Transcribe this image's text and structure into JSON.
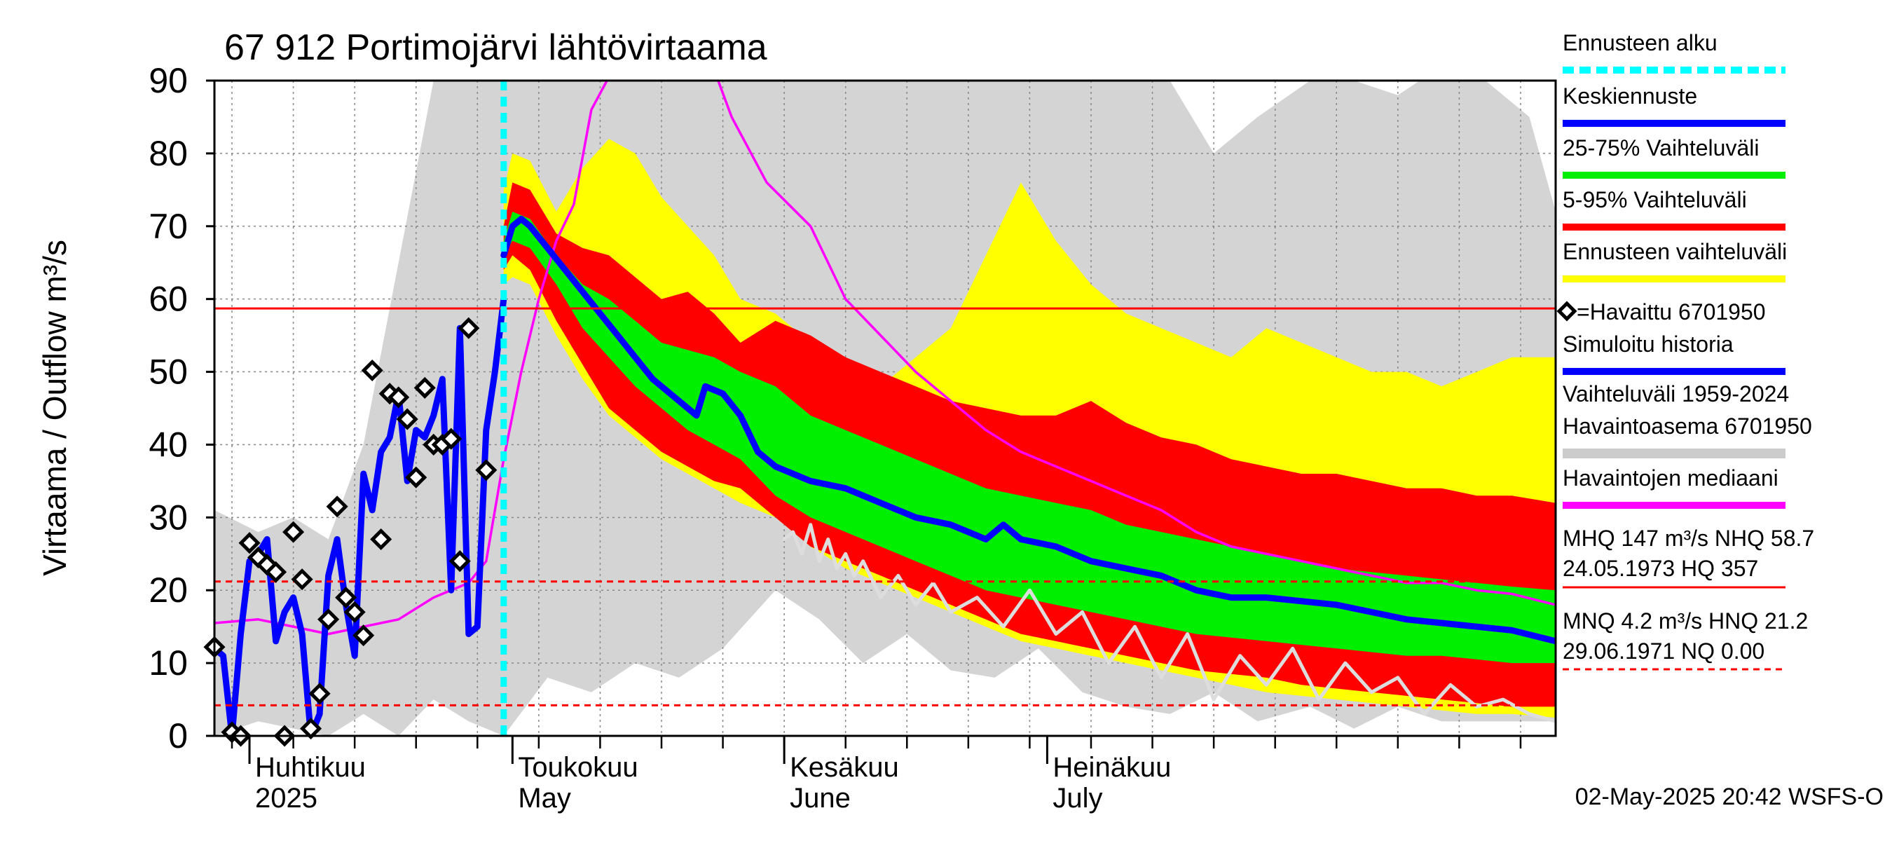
{
  "chart_data": {
    "type": "line",
    "title": "67 912 Portimojärvi lähtövirtaama",
    "ylabel": "Virtaama / Outflow    m³/s",
    "ylim": [
      0,
      90
    ],
    "yticks": [
      0,
      10,
      20,
      30,
      40,
      50,
      60,
      70,
      80,
      90
    ],
    "x_start": "2025-03-28",
    "x_end": "2025-08-28",
    "grid": true,
    "month_labels": [
      {
        "fi": "Huhtikuu",
        "en": "2025",
        "date": "2025-04-01"
      },
      {
        "fi": "Toukokuu",
        "en": "May",
        "date": "2025-05-01"
      },
      {
        "fi": "Kesäkuu",
        "en": "June",
        "date": "2025-06-01"
      },
      {
        "fi": "Heinäkuu",
        "en": "July",
        "date": "2025-07-01"
      }
    ],
    "forecast_start": "2025-04-30",
    "reference_lines": [
      {
        "value": 58.7,
        "style": "solid",
        "color": "#ff0000"
      },
      {
        "value": 21.2,
        "style": "dashed",
        "color": "#ff0000"
      },
      {
        "value": 4.2,
        "style": "dashed",
        "color": "#ff0000"
      },
      {
        "value": 0.0,
        "style": "dashed",
        "color": "#ff0000"
      }
    ],
    "historical_range": {
      "dates": [
        "2025-03-28",
        "2025-04-02",
        "2025-04-06",
        "2025-04-10",
        "2025-04-14",
        "2025-04-18",
        "2025-04-22",
        "2025-04-26",
        "2025-04-30",
        "2025-05-05",
        "2025-05-10",
        "2025-05-15",
        "2025-05-20",
        "2025-05-25",
        "2025-05-31",
        "2025-06-05",
        "2025-06-10",
        "2025-06-15",
        "2025-06-20",
        "2025-06-25",
        "2025-06-30",
        "2025-07-05",
        "2025-07-10",
        "2025-07-15",
        "2025-07-20",
        "2025-07-25",
        "2025-07-31",
        "2025-08-05",
        "2025-08-10",
        "2025-08-15",
        "2025-08-20",
        "2025-08-25",
        "2025-08-28"
      ],
      "low": [
        0,
        2,
        1,
        0,
        3,
        0,
        5,
        2,
        0,
        8,
        6,
        10,
        8,
        12,
        20,
        16,
        10,
        14,
        9,
        8,
        12,
        6,
        4,
        3,
        6,
        2,
        4,
        1,
        4,
        2,
        2,
        2,
        2
      ],
      "high": [
        31,
        28,
        30,
        27,
        40,
        65,
        90,
        90,
        90,
        90,
        90,
        90,
        90,
        90,
        90,
        90,
        90,
        90,
        90,
        90,
        90,
        90,
        90,
        90,
        80,
        85,
        90,
        90,
        88,
        92,
        90,
        85,
        72
      ]
    },
    "series": [
      {
        "name": "Ennusteen vaihteluväli",
        "type": "band",
        "color": "#ffff00",
        "dates": [
          "2025-04-30",
          "2025-05-01",
          "2025-05-03",
          "2025-05-06",
          "2025-05-09",
          "2025-05-12",
          "2025-05-15",
          "2025-05-18",
          "2025-05-21",
          "2025-05-24",
          "2025-05-27",
          "2025-05-31",
          "2025-06-04",
          "2025-06-08",
          "2025-06-12",
          "2025-06-16",
          "2025-06-20",
          "2025-06-24",
          "2025-06-28",
          "2025-07-02",
          "2025-07-06",
          "2025-07-10",
          "2025-07-14",
          "2025-07-18",
          "2025-07-22",
          "2025-07-26",
          "2025-07-30",
          "2025-08-03",
          "2025-08-07",
          "2025-08-11",
          "2025-08-15",
          "2025-08-19",
          "2025-08-23",
          "2025-08-28"
        ],
        "low": [
          62,
          63,
          62,
          55,
          49,
          44,
          41,
          38,
          36,
          34,
          32,
          30,
          26,
          23,
          21,
          19,
          17,
          15,
          13,
          12,
          11,
          10,
          9,
          8,
          7,
          6,
          5.5,
          5,
          4.5,
          4,
          3.5,
          3,
          3,
          2.5
        ],
        "high": [
          75,
          80,
          79,
          72,
          78,
          82,
          80,
          74,
          70,
          66,
          60,
          58,
          54,
          50,
          48,
          52,
          56,
          66,
          76,
          68,
          62,
          58,
          56,
          54,
          52,
          56,
          54,
          52,
          50,
          50,
          48,
          50,
          52,
          52
        ]
      },
      {
        "name": "5-95% Vaihteluväli",
        "type": "band",
        "color": "#ff0000",
        "dates": [
          "2025-04-30",
          "2025-05-01",
          "2025-05-03",
          "2025-05-06",
          "2025-05-09",
          "2025-05-12",
          "2025-05-15",
          "2025-05-18",
          "2025-05-21",
          "2025-05-24",
          "2025-05-27",
          "2025-05-31",
          "2025-06-04",
          "2025-06-08",
          "2025-06-12",
          "2025-06-16",
          "2025-06-20",
          "2025-06-24",
          "2025-06-28",
          "2025-07-02",
          "2025-07-06",
          "2025-07-10",
          "2025-07-14",
          "2025-07-18",
          "2025-07-22",
          "2025-07-26",
          "2025-07-30",
          "2025-08-03",
          "2025-08-07",
          "2025-08-11",
          "2025-08-15",
          "2025-08-19",
          "2025-08-23",
          "2025-08-28"
        ],
        "low": [
          64,
          66,
          64,
          57,
          51,
          45,
          42,
          39,
          37,
          35,
          34,
          30,
          26,
          24,
          22,
          20,
          18,
          16,
          14,
          13,
          12,
          11,
          10,
          9,
          8.5,
          8,
          7,
          6.5,
          6,
          5.5,
          5,
          4.5,
          4,
          4
        ],
        "high": [
          70,
          76,
          75,
          69,
          67,
          66,
          63,
          60,
          61,
          58,
          54,
          57,
          55,
          52,
          50,
          48,
          46,
          45,
          44,
          44,
          46,
          43,
          41,
          40,
          38,
          37,
          36,
          36,
          35,
          34,
          34,
          33,
          33,
          32
        ]
      },
      {
        "name": "25-75% Vaihteluväli",
        "type": "band",
        "color": "#00ee00",
        "dates": [
          "2025-04-30",
          "2025-05-01",
          "2025-05-03",
          "2025-05-06",
          "2025-05-09",
          "2025-05-12",
          "2025-05-15",
          "2025-05-18",
          "2025-05-21",
          "2025-05-24",
          "2025-05-27",
          "2025-05-31",
          "2025-06-04",
          "2025-06-08",
          "2025-06-12",
          "2025-06-16",
          "2025-06-20",
          "2025-06-24",
          "2025-06-28",
          "2025-07-02",
          "2025-07-06",
          "2025-07-10",
          "2025-07-14",
          "2025-07-18",
          "2025-07-22",
          "2025-07-26",
          "2025-07-30",
          "2025-08-03",
          "2025-08-07",
          "2025-08-11",
          "2025-08-15",
          "2025-08-19",
          "2025-08-23",
          "2025-08-28"
        ],
        "low": [
          66,
          68,
          67,
          62,
          56,
          52,
          48,
          45,
          42,
          40,
          38,
          33,
          30,
          28,
          26,
          24,
          22,
          20,
          19,
          18,
          17,
          16,
          15,
          14,
          13.5,
          13,
          12.5,
          12,
          11.5,
          11,
          11,
          10.5,
          10,
          10
        ],
        "high": [
          68,
          72,
          71,
          66,
          62,
          60,
          57,
          54,
          53,
          52,
          50,
          48,
          44,
          42,
          40,
          38,
          36,
          34,
          33,
          32,
          31,
          29,
          28,
          27,
          26,
          25,
          24,
          23,
          22.5,
          22,
          21.5,
          21,
          20.5,
          20
        ]
      },
      {
        "name": "Simuloitu historia",
        "type": "line",
        "color": "#0000ff",
        "dates": [
          "2025-03-28",
          "2025-03-29",
          "2025-03-30",
          "2025-03-31",
          "2025-04-01",
          "2025-04-02",
          "2025-04-03",
          "2025-04-04",
          "2025-04-05",
          "2025-04-06",
          "2025-04-07",
          "2025-04-08",
          "2025-04-09",
          "2025-04-10",
          "2025-04-11",
          "2025-04-12",
          "2025-04-13",
          "2025-04-14",
          "2025-04-15",
          "2025-04-16",
          "2025-04-17",
          "2025-04-18",
          "2025-04-19",
          "2025-04-20",
          "2025-04-21",
          "2025-04-22",
          "2025-04-23",
          "2025-04-24",
          "2025-04-25",
          "2025-04-26",
          "2025-04-27",
          "2025-04-28",
          "2025-04-29",
          "2025-04-30"
        ],
        "values": [
          12,
          11,
          0,
          14,
          24,
          25,
          27,
          13,
          17,
          19,
          14,
          0,
          3,
          22,
          27,
          18,
          11,
          36,
          31,
          39,
          41,
          47,
          35,
          42,
          41,
          44,
          49,
          20,
          56,
          14,
          15,
          42,
          50,
          60
        ]
      },
      {
        "name": "Keskiennuste",
        "type": "line",
        "color": "#0000ff",
        "dates": [
          "2025-04-30",
          "2025-05-01",
          "2025-05-02",
          "2025-05-03",
          "2025-05-05",
          "2025-05-07",
          "2025-05-09",
          "2025-05-11",
          "2025-05-13",
          "2025-05-15",
          "2025-05-17",
          "2025-05-19",
          "2025-05-21",
          "2025-05-22",
          "2025-05-23",
          "2025-05-25",
          "2025-05-27",
          "2025-05-29",
          "2025-05-31",
          "2025-06-04",
          "2025-06-08",
          "2025-06-12",
          "2025-06-16",
          "2025-06-20",
          "2025-06-24",
          "2025-06-26",
          "2025-06-28",
          "2025-07-02",
          "2025-07-06",
          "2025-07-10",
          "2025-07-14",
          "2025-07-18",
          "2025-07-22",
          "2025-07-26",
          "2025-07-30",
          "2025-08-03",
          "2025-08-07",
          "2025-08-11",
          "2025-08-15",
          "2025-08-19",
          "2025-08-23",
          "2025-08-28"
        ],
        "values": [
          66,
          70,
          71,
          70,
          67,
          64,
          61,
          58,
          55,
          52,
          49,
          47,
          45,
          44,
          48,
          47,
          44,
          39,
          37,
          35,
          34,
          32,
          30,
          29,
          27,
          29,
          27,
          26,
          24,
          23,
          22,
          20,
          19,
          19,
          18.5,
          18,
          17,
          16,
          15.5,
          15,
          14.5,
          13
        ]
      },
      {
        "name": "Havaintojen mediaani",
        "type": "line",
        "color": "#ff00ff",
        "dates": [
          "2025-03-28",
          "2025-04-02",
          "2025-04-06",
          "2025-04-10",
          "2025-04-14",
          "2025-04-18",
          "2025-04-22",
          "2025-04-26",
          "2025-04-28",
          "2025-04-30",
          "2025-05-02",
          "2025-05-04",
          "2025-05-06",
          "2025-05-08",
          "2025-05-10",
          "2025-05-14",
          "2025-05-18",
          "2025-05-22",
          "2025-05-26",
          "2025-05-30",
          "2025-06-04",
          "2025-06-08",
          "2025-06-12",
          "2025-06-16",
          "2025-06-20",
          "2025-06-24",
          "2025-06-28",
          "2025-07-02",
          "2025-07-06",
          "2025-07-10",
          "2025-07-14",
          "2025-07-18",
          "2025-07-22",
          "2025-07-26",
          "2025-07-30",
          "2025-08-03",
          "2025-08-07",
          "2025-08-11",
          "2025-08-15",
          "2025-08-19",
          "2025-08-23",
          "2025-08-28"
        ],
        "values": [
          15.5,
          16,
          15,
          14,
          15,
          16,
          19,
          21,
          24,
          38,
          50,
          60,
          68,
          73,
          86,
          95,
          105,
          98,
          85,
          76,
          70,
          60,
          55,
          50,
          46,
          42,
          39,
          37,
          35,
          33,
          31,
          28,
          26,
          25,
          24,
          23,
          22,
          21,
          21,
          20,
          19.5,
          18
        ]
      },
      {
        "name": "Havaittu 6701950",
        "type": "scatter",
        "marker": "diamond",
        "dates": [
          "2025-03-28",
          "2025-03-30",
          "2025-03-31",
          "2025-04-01",
          "2025-04-02",
          "2025-04-03",
          "2025-04-04",
          "2025-04-05",
          "2025-04-06",
          "2025-04-07",
          "2025-04-08",
          "2025-04-09",
          "2025-04-10",
          "2025-04-11",
          "2025-04-12",
          "2025-04-13",
          "2025-04-14",
          "2025-04-15",
          "2025-04-16",
          "2025-04-17",
          "2025-04-18",
          "2025-04-19",
          "2025-04-20",
          "2025-04-21",
          "2025-04-22",
          "2025-04-23",
          "2025-04-24",
          "2025-04-25",
          "2025-04-26",
          "2025-04-28"
        ],
        "values": [
          12.2,
          0.5,
          0,
          26.5,
          24.5,
          23.5,
          22.5,
          0,
          28,
          21.5,
          1,
          5.8,
          16,
          31.5,
          19,
          17,
          13.8,
          50.2,
          27,
          47,
          46.5,
          43.5,
          35.5,
          47.8,
          40,
          40,
          40.8,
          24,
          56,
          36.5
        ]
      },
      {
        "name": "observed-min-trace",
        "type": "line",
        "color": "#dddddd",
        "dates": [
          "2025-06-01",
          "2025-06-02",
          "2025-06-03",
          "2025-06-04",
          "2025-06-05",
          "2025-06-06",
          "2025-06-07",
          "2025-06-08",
          "2025-06-09",
          "2025-06-10",
          "2025-06-12",
          "2025-06-14",
          "2025-06-16",
          "2025-06-18",
          "2025-06-20",
          "2025-06-23",
          "2025-06-26",
          "2025-06-29",
          "2025-07-02",
          "2025-07-05",
          "2025-07-08",
          "2025-07-11",
          "2025-07-14",
          "2025-07-17",
          "2025-07-20",
          "2025-07-23",
          "2025-07-26",
          "2025-07-29",
          "2025-08-01",
          "2025-08-04",
          "2025-08-07",
          "2025-08-10",
          "2025-08-13",
          "2025-08-16",
          "2025-08-19",
          "2025-08-22",
          "2025-08-25",
          "2025-08-28"
        ],
        "values": [
          27,
          28,
          25,
          29,
          24,
          27,
          23,
          25,
          22,
          24,
          19,
          22,
          18,
          21,
          17,
          19,
          15,
          20,
          14,
          17,
          10,
          15,
          8,
          14,
          5,
          11,
          7,
          12,
          5,
          10,
          6,
          8,
          3,
          7,
          4,
          5,
          3,
          2
        ]
      }
    ]
  },
  "legend": {
    "items": [
      {
        "label": "Ennusteen alku",
        "kind": "line",
        "color": "#00ffff",
        "dashed": true
      },
      {
        "label": "Keskiennuste",
        "kind": "line",
        "color": "#0000ff"
      },
      {
        "label": "25-75% Vaihteluväli",
        "kind": "line",
        "color": "#00ee00"
      },
      {
        "label": "5-95% Vaihteluväli",
        "kind": "line",
        "color": "#ff0000"
      },
      {
        "label": "Ennusteen vaihteluväli",
        "kind": "line",
        "color": "#ffff00"
      },
      {
        "label": "=Havaittu 6701950",
        "kind": "marker"
      },
      {
        "label": "Simuloitu historia",
        "kind": "line",
        "color": "#0000ff"
      },
      {
        "label": "Vaihteluväli 1959-2024",
        "kind": "text"
      },
      {
        "label": " Havaintoasema 6701950",
        "kind": "line",
        "color": "#cccccc"
      },
      {
        "label": "Havaintojen mediaani",
        "kind": "line",
        "color": "#ff00ff"
      }
    ],
    "stats1_line1": "MHQ  147 m³/s NHQ 58.7",
    "stats1_line2": "24.05.1973 HQ  357",
    "stats2_line1": "MNQ  4.2 m³/s HNQ 21.2",
    "stats2_line2": "29.06.1971 NQ 0.00"
  },
  "footer": "02-May-2025 20:42 WSFS-O"
}
